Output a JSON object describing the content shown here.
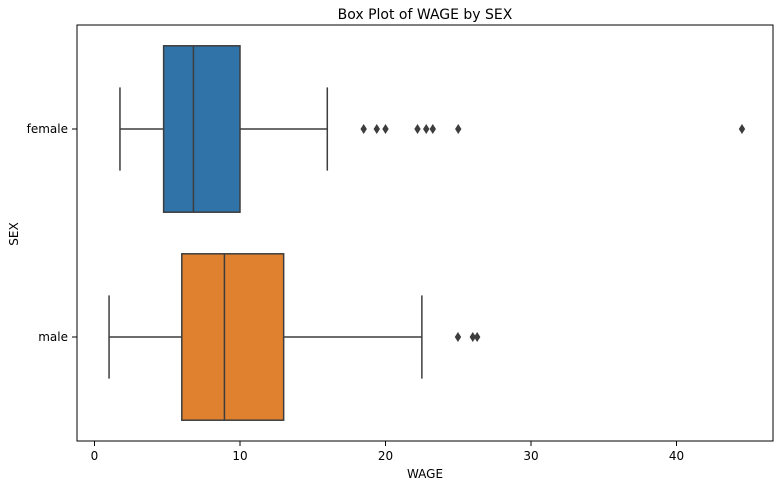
{
  "chart_data": {
    "type": "boxplot",
    "orientation": "horizontal",
    "title": "Box Plot of WAGE by SEX",
    "xlabel": "WAGE",
    "ylabel": "SEX",
    "xlim": [
      -1.2,
      46.5
    ],
    "xticks": [
      0,
      10,
      20,
      30,
      40
    ],
    "grid": false,
    "categories": [
      "female",
      "male"
    ],
    "series": [
      {
        "category": "female",
        "color": "#2f73a8",
        "whisker_low": 1.75,
        "q1": 4.75,
        "median": 6.8,
        "q3": 10.0,
        "whisker_high": 16.0,
        "outliers": [
          18.5,
          19.4,
          20.0,
          22.2,
          22.8,
          23.25,
          25.0,
          44.5
        ]
      },
      {
        "category": "male",
        "color": "#e0812f",
        "whisker_low": 1.0,
        "q1": 6.0,
        "median": 8.93,
        "q3": 13.0,
        "whisker_high": 22.5,
        "outliers": [
          24.98,
          26.0,
          26.3
        ]
      }
    ]
  }
}
